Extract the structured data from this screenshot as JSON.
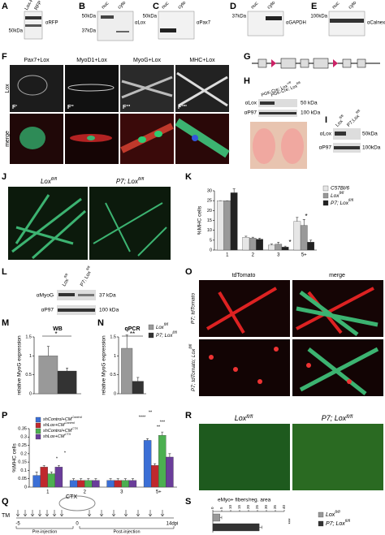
{
  "panel_labels": [
    "A",
    "B",
    "C",
    "D",
    "E",
    "F",
    "G",
    "H",
    "I",
    "J",
    "K",
    "L",
    "M",
    "N",
    "O",
    "P",
    "Q",
    "R",
    "S"
  ],
  "A": {
    "lanes": [
      "Lox-RFP",
      "RFP"
    ],
    "markers": [
      "50kDa"
    ],
    "antibody": "αRFP"
  },
  "B": {
    "lanes": [
      "nuc",
      "cyto"
    ],
    "markers": [
      "50kDa",
      "37kDa"
    ],
    "antibody": "αLox"
  },
  "C": {
    "lanes": [
      "nuc",
      "cyto"
    ],
    "markers": [
      "50kDa"
    ],
    "antibody": "αPax7"
  },
  "D": {
    "lanes": [
      "nuc",
      "cyto"
    ],
    "markers": [
      "37kDa"
    ],
    "antibody": "αGAPDH"
  },
  "E": {
    "lanes": [
      "nuc",
      "cyto"
    ],
    "markers": [
      "100kDa"
    ],
    "antibody": "αCalnexin"
  },
  "F": {
    "columns": [
      "Pax7+Lox",
      "MyoD1+Lox",
      "MyoG+Lox",
      "MHC+Lox"
    ],
    "rows": [
      "Lox",
      "merge"
    ],
    "sublabels": [
      "F'",
      "F''",
      "F'''",
      "F''''"
    ]
  },
  "H": {
    "lanes": [
      {
        "text": "PGK-Cre; Lox",
        "sup": "+/fl"
      },
      {
        "text": "PGK-Cre; Lox",
        "sup": "fl/fl"
      }
    ],
    "antibodies": [
      "αLox",
      "αP97"
    ],
    "markers": [
      "50 kDa",
      "100 kDa"
    ]
  },
  "I": {
    "lanes": [
      {
        "text": "Lox",
        "sup": "fl/fl"
      },
      {
        "text": "P7;Lox",
        "sup": "fl/fl"
      }
    ],
    "antibodies": [
      "αLox",
      "αP97"
    ],
    "markers": [
      "50kDa",
      "100kDa"
    ]
  },
  "J": {
    "columns": [
      {
        "text": "Lox",
        "sup": "fl/fl"
      },
      {
        "text": "P7; Lox",
        "sup": "fl/fl"
      }
    ]
  },
  "K": {
    "type": "bar",
    "ylabel": "%MHC cells",
    "categories": [
      "1",
      "2",
      "3",
      "5+"
    ],
    "ylim": [
      0,
      30
    ],
    "yticks": [
      0,
      5,
      10,
      15,
      20,
      25,
      30
    ],
    "series": [
      {
        "name": "C57Bl/6",
        "color": "#e6e6e6",
        "values": [
          25,
          6.5,
          2.5,
          14.5
        ],
        "errors": [
          0,
          0.5,
          0.5,
          2
        ]
      },
      {
        "name": {
          "text": "Lox",
          "sup": "fl/fl"
        },
        "color": "#999999",
        "values": [
          25,
          6,
          3,
          12.5
        ],
        "errors": [
          0,
          0.5,
          1,
          3
        ]
      },
      {
        "name": {
          "text": "P7; Lox",
          "sup": "fl/fl"
        },
        "color": "#222222",
        "values": [
          29,
          5.5,
          1.5,
          4
        ],
        "errors": [
          2,
          0.5,
          0.5,
          1
        ]
      }
    ],
    "annotations": [
      "*",
      "*"
    ]
  },
  "L": {
    "lanes": [
      {
        "text": "Lox",
        "sup": "fl/fl"
      },
      {
        "text": "P7; Lox",
        "sup": "fl/fl"
      }
    ],
    "antibodies": [
      "αMyoG",
      "αP97"
    ],
    "markers": [
      "37 kDa",
      "100 kDa"
    ]
  },
  "M": {
    "type": "bar",
    "title": "WB",
    "ylabel": "relative MyoG expression",
    "ylim": [
      0,
      1.5
    ],
    "yticks": [
      0,
      0.5,
      1,
      1.5
    ],
    "values": [
      1.0,
      0.6
    ],
    "errors": [
      0.25,
      0.08
    ],
    "colors": [
      "#999999",
      "#333333"
    ],
    "annotations": [
      "*"
    ]
  },
  "N": {
    "type": "bar",
    "title": "qPCR",
    "ylabel": "relative MyoG expression",
    "ylim": [
      0,
      1.5
    ],
    "yticks": [
      0,
      0.5,
      1,
      1.5
    ],
    "values": [
      1.2,
      0.33
    ],
    "errors": [
      0.35,
      0.1
    ],
    "colors": [
      "#999999",
      "#333333"
    ],
    "annotations": [
      "**"
    ],
    "legend": [
      {
        "text": "Lox",
        "sup": "fl/fl"
      },
      {
        "text": "P7; Lox",
        "sup": "fl/fl"
      }
    ]
  },
  "O": {
    "columns": [
      "tdTomato",
      "merge"
    ],
    "rows": [
      "P7; tdTomato",
      {
        "text": "P7; tdTomato; Lox",
        "sup": "fl/fl"
      }
    ]
  },
  "P": {
    "type": "bar",
    "ylabel": "%MHC cells",
    "categories": [
      "1",
      "2",
      "3",
      "5+"
    ],
    "ylim": [
      0,
      0.35
    ],
    "yticks": [
      0,
      0.05,
      0.1,
      0.15,
      0.2,
      0.25,
      0.3,
      0.35
    ],
    "series": [
      {
        "name": {
          "text": "shControl+CM",
          "sup": "Control"
        },
        "color": "#3b6fd6",
        "values": [
          0.07,
          0.04,
          0.04,
          0.28
        ],
        "errors": [
          0.02,
          0.01,
          0.01,
          0.01
        ]
      },
      {
        "name": {
          "text": "shLox+CM",
          "sup": "Control"
        },
        "color": "#c0282d",
        "values": [
          0.12,
          0.04,
          0.04,
          0.13
        ],
        "errors": [
          0.01,
          0.01,
          0.01,
          0.01
        ]
      },
      {
        "name": {
          "text": "shControl+CM",
          "sup": "CTX"
        },
        "color": "#4caf50",
        "values": [
          0.08,
          0.04,
          0.04,
          0.31
        ],
        "errors": [
          0.01,
          0.01,
          0.01,
          0.02
        ]
      },
      {
        "name": {
          "text": "shLox+CM",
          "sup": "CTX"
        },
        "color": "#6a3d9a",
        "values": [
          0.12,
          0.04,
          0.04,
          0.18
        ],
        "errors": [
          0.01,
          0.01,
          0.01,
          0.02
        ]
      }
    ],
    "annotations": [
      "*",
      "*",
      "**",
      "****",
      "***",
      "**"
    ]
  },
  "Q": {
    "event": "CTX",
    "treatment": "TM",
    "days": [
      "-5",
      "0",
      "14dpi"
    ],
    "phases": [
      "Pre-injection",
      "Post-injection"
    ]
  },
  "R": {
    "columns": [
      {
        "text": "Lox",
        "sup": "fl/fl"
      },
      {
        "text": "P7; Lox",
        "sup": "fl/fl"
      }
    ]
  },
  "S": {
    "type": "hbar",
    "title": "eMyo+ fibers/reg. area",
    "xlim": [
      0,
      40
    ],
    "xticks": [
      0,
      5,
      10,
      15,
      20,
      25,
      30,
      35,
      40
    ],
    "series": [
      {
        "name": {
          "text": "Lox",
          "sup": "fl/fl"
        },
        "color": "#999999",
        "values": [
          4
        ],
        "errors": [
          1
        ]
      },
      {
        "name": {
          "text": "P7; Lox",
          "sup": "fl/fl"
        },
        "color": "#333333",
        "values": [
          26
        ],
        "errors": [
          1.5
        ]
      }
    ],
    "annotations": [
      "***"
    ]
  }
}
